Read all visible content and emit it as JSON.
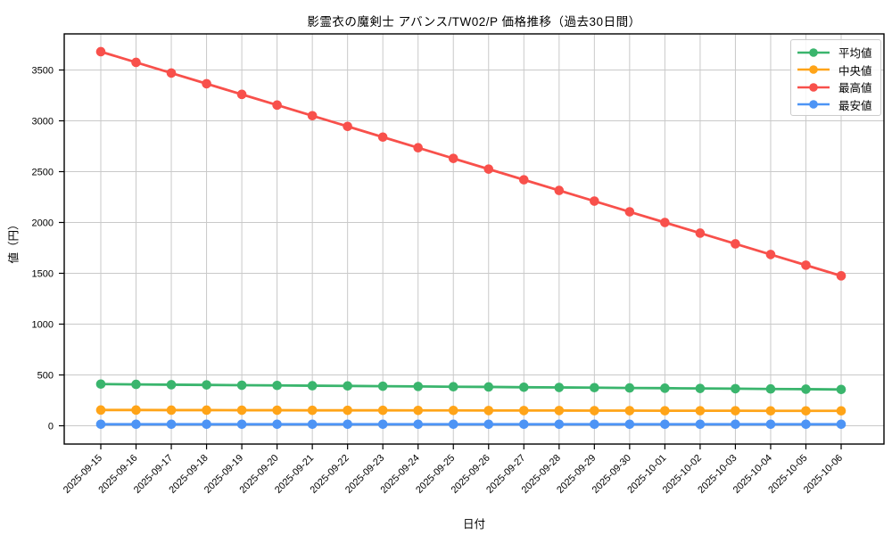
{
  "figure": {
    "title": "影霊衣の魔剣士 アバンス/TW02/P 価格推移（過去30日間）",
    "xlabel": "日付",
    "ylabel": "値（円）"
  },
  "chart_data": {
    "type": "line",
    "title": "影霊衣の魔剣士 アバンス/TW02/P 価格推移（過去30日間）",
    "xlabel": "日付",
    "ylabel": "値（円）",
    "categories": [
      "2025-09-15",
      "2025-09-16",
      "2025-09-17",
      "2025-09-18",
      "2025-09-19",
      "2025-09-20",
      "2025-09-21",
      "2025-09-22",
      "2025-09-23",
      "2025-09-24",
      "2025-09-25",
      "2025-09-26",
      "2025-09-27",
      "2025-09-28",
      "2025-09-29",
      "2025-09-30",
      "2025-10-01",
      "2025-10-02",
      "2025-10-03",
      "2025-10-04",
      "2025-10-05",
      "2025-10-06"
    ],
    "series": [
      {
        "name": "平均値",
        "color": "#3ab56d",
        "values": [
          410,
          407,
          404,
          402,
          399,
          397,
          394,
          392,
          389,
          387,
          384,
          382,
          379,
          377,
          375,
          372,
          370,
          367,
          365,
          362,
          360,
          357
        ]
      },
      {
        "name": "中央値",
        "color": "#ffa418",
        "values": [
          155,
          155,
          154,
          154,
          153,
          153,
          152,
          152,
          152,
          151,
          151,
          150,
          150,
          150,
          149,
          149,
          148,
          148,
          148,
          147,
          147,
          147
        ]
      },
      {
        "name": "最高値",
        "color": "#f8504b",
        "values": [
          3680,
          3575,
          3470,
          3365,
          3260,
          3155,
          3050,
          2945,
          2840,
          2735,
          2630,
          2525,
          2420,
          2315,
          2210,
          2105,
          2000,
          1895,
          1790,
          1685,
          1580,
          1475
        ]
      },
      {
        "name": "最安値",
        "color": "#4d94f5",
        "values": [
          15,
          15,
          15,
          15,
          15,
          15,
          15,
          15,
          15,
          15,
          15,
          15,
          15,
          15,
          15,
          15,
          15,
          15,
          15,
          15,
          15,
          15
        ]
      }
    ],
    "yticks": [
      0,
      500,
      1000,
      1500,
      2000,
      2500,
      3000,
      3500
    ],
    "ylim": [
      -150,
      3860
    ],
    "grid": true,
    "grid_color": "#c9c9c9",
    "legend_position": "upper right",
    "x_tick_rotation_deg": 45
  }
}
